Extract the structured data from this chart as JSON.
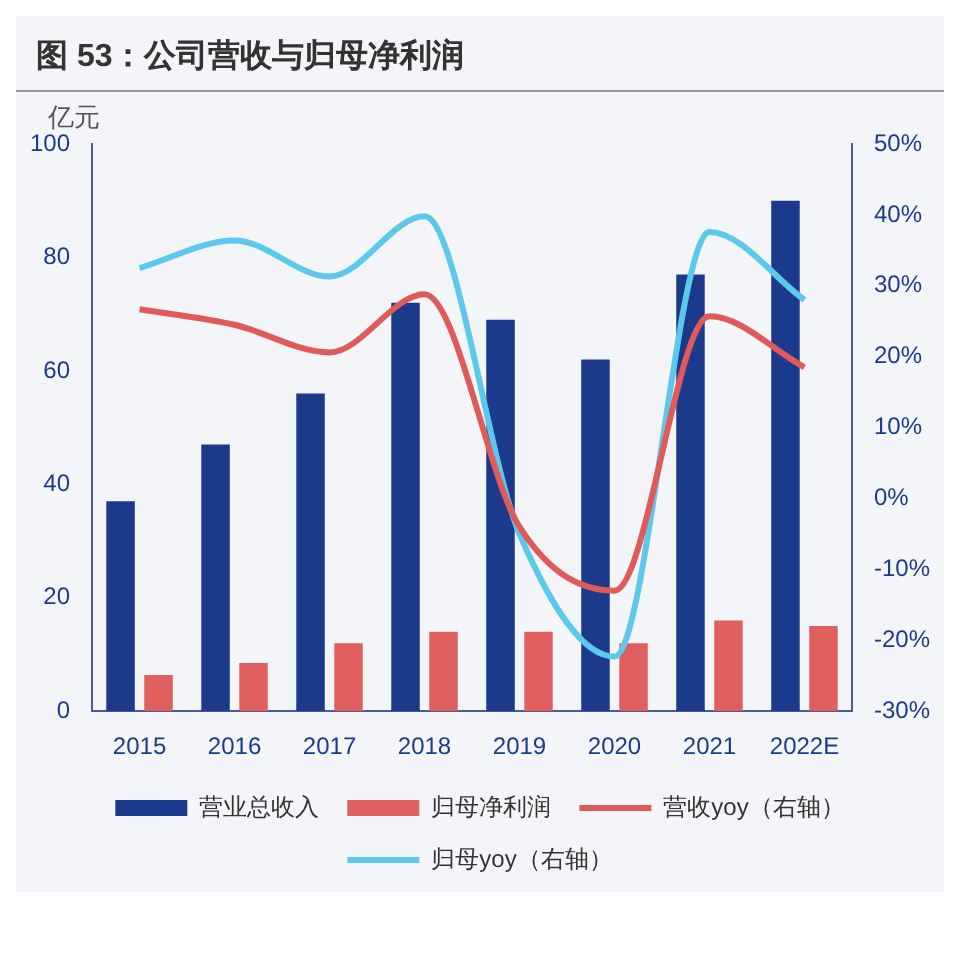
{
  "chart_data": {
    "type": "bar",
    "title": "图 53：公司营收与归母净利润",
    "ylabel": "亿元",
    "categories": [
      "2015",
      "2016",
      "2017",
      "2018",
      "2019",
      "2020",
      "2021",
      "2022E"
    ],
    "series": [
      {
        "name": "营业总收入",
        "color": "#1c3a8c",
        "values": [
          37,
          47,
          56,
          72,
          69,
          62,
          77,
          90
        ]
      },
      {
        "name": "归母净利润",
        "color": "#e06060",
        "values": [
          6.4,
          8.5,
          12,
          14,
          14,
          12,
          16,
          15
        ]
      },
      {
        "name": "营收yoy（右轴）",
        "type": "line",
        "axis": "y2",
        "color": "#e05a5a",
        "values": [
          26.7,
          24.5,
          20.6,
          28.8,
          -4,
          -13,
          25.7,
          18.5
        ]
      },
      {
        "name": "归母yoy（右轴）",
        "type": "line",
        "axis": "y2",
        "color": "#5bc8ec",
        "values": [
          32.5,
          36.4,
          31.3,
          39.8,
          -5,
          -22.3,
          37.6,
          28
        ]
      }
    ],
    "ylim": [
      0,
      100
    ],
    "yticks": [
      0,
      20,
      40,
      60,
      80,
      100
    ],
    "y2lim": [
      -30,
      50
    ],
    "y2ticks": [
      {
        "value": -30,
        "label": "-30%"
      },
      {
        "value": -20,
        "label": "-20%"
      },
      {
        "value": -10,
        "label": "-10%"
      },
      {
        "value": 0,
        "label": "0%"
      },
      {
        "value": 10,
        "label": "10%"
      },
      {
        "value": 20,
        "label": "20%"
      },
      {
        "value": 30,
        "label": "30%"
      },
      {
        "value": 40,
        "label": "40%"
      },
      {
        "value": 50,
        "label": "50%"
      }
    ],
    "grid": false,
    "legend": "bottom",
    "marker": "none",
    "line_style": "solid"
  }
}
